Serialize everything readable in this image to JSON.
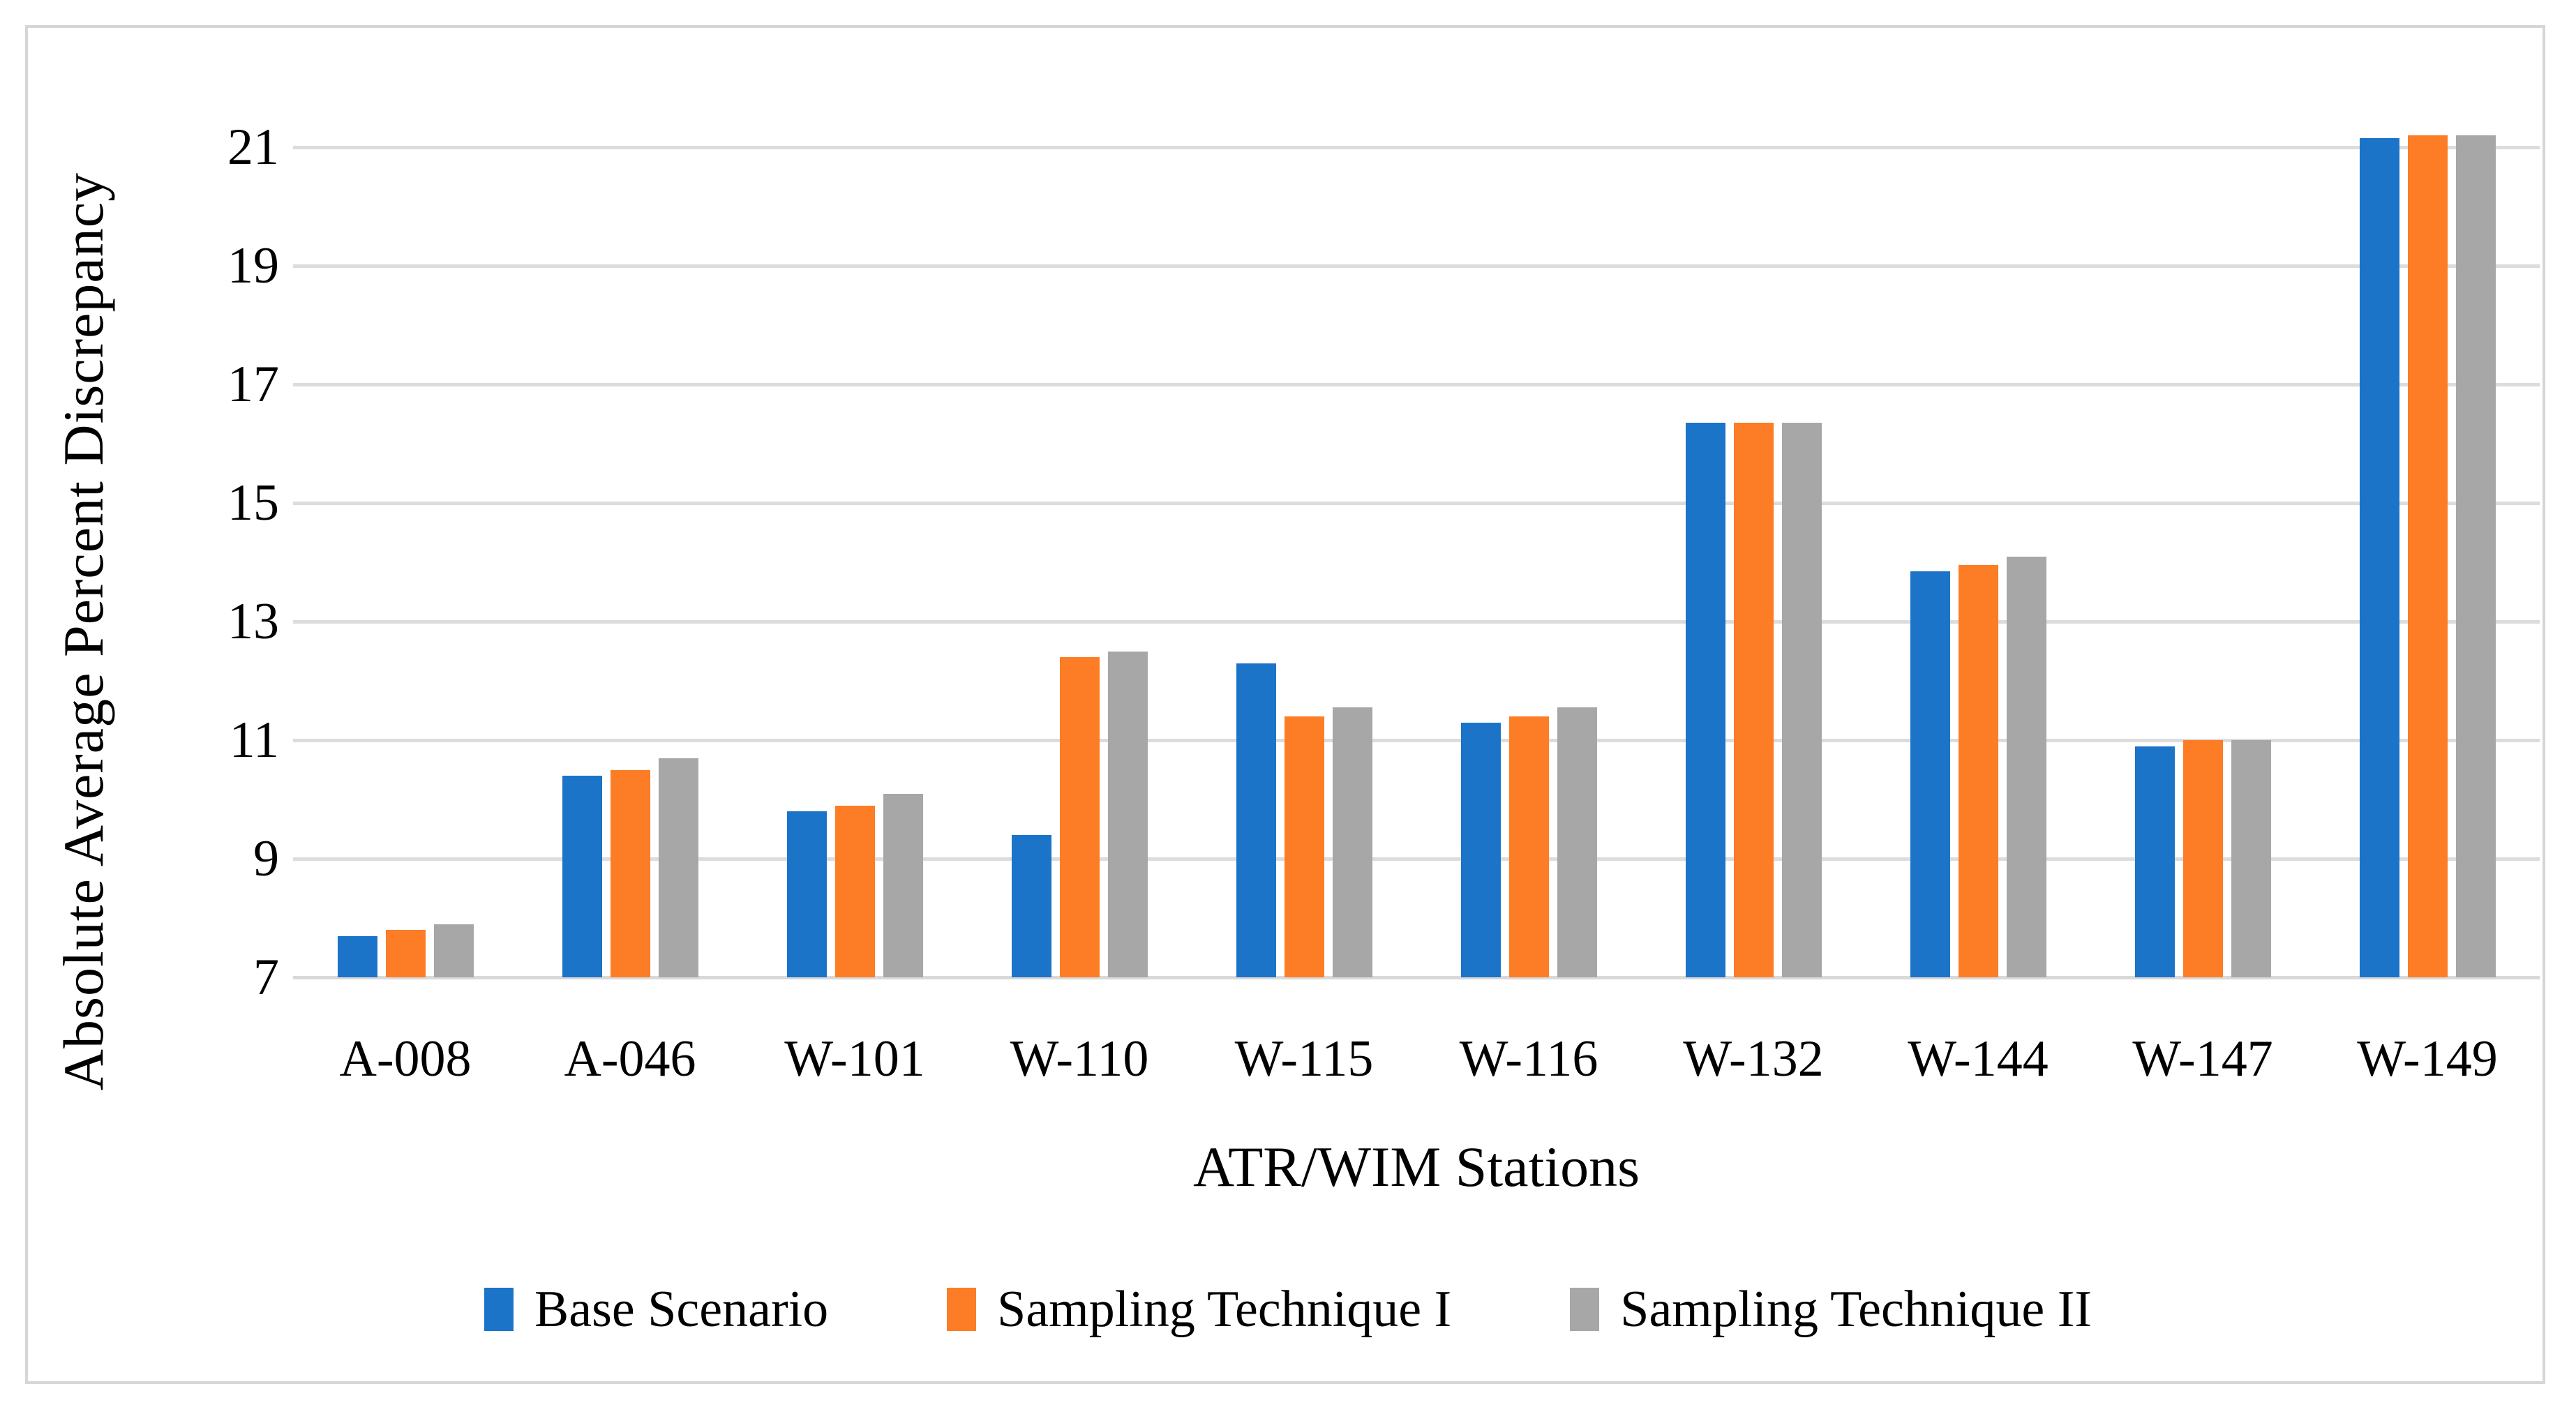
{
  "figure": {
    "background": "#ffffff",
    "border_color": "#d6d6d6",
    "gridline_color": "#dcdcdc"
  },
  "chart_data": {
    "type": "bar",
    "title": "",
    "xlabel": "ATR/WIM Stations",
    "ylabel": "Absolute Average Percent Discrepancy",
    "categories": [
      "A-008",
      "A-046",
      "W-101",
      "W-110",
      "W-115",
      "W-116",
      "W-132",
      "W-144",
      "W-147",
      "W-149"
    ],
    "series": [
      {
        "name": "Base Scenario",
        "color": "#1b74c8",
        "values": [
          7.7,
          10.4,
          9.8,
          9.4,
          12.3,
          11.3,
          16.35,
          13.85,
          10.9,
          21.15
        ]
      },
      {
        "name": "Sampling Technique I",
        "color": "#fc7d25",
        "values": [
          7.8,
          10.5,
          9.9,
          12.4,
          11.4,
          11.4,
          16.35,
          13.95,
          11.0,
          21.2
        ]
      },
      {
        "name": "Sampling Technique II",
        "color": "#a7a7a7",
        "values": [
          7.9,
          10.7,
          10.1,
          12.5,
          11.55,
          11.55,
          16.35,
          14.1,
          11.0,
          21.2
        ]
      }
    ],
    "ylim": [
      7,
      21.7
    ],
    "yticks": [
      7,
      9,
      11,
      13,
      15,
      17,
      19,
      21
    ],
    "axis_min": 7,
    "grid": true,
    "legend_position": "bottom"
  }
}
